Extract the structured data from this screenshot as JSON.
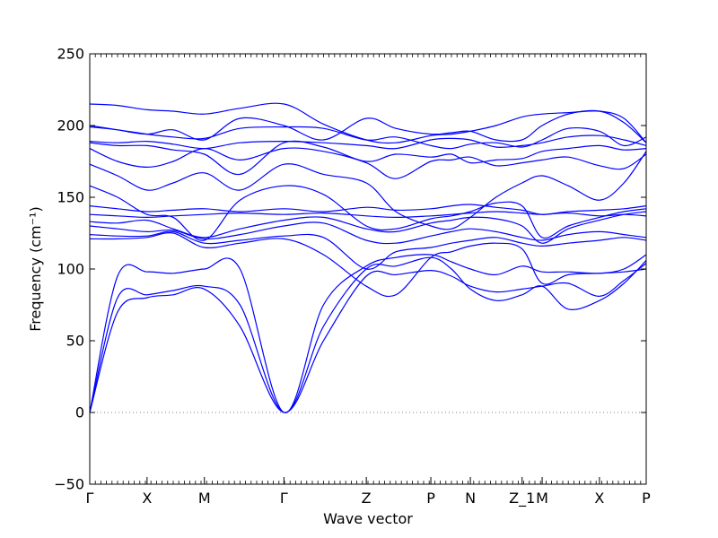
{
  "chart_data": {
    "type": "line",
    "title": "",
    "xlabel": "Wave vector",
    "ylabel": "Frequency (cm⁻¹)",
    "ylim": [
      -50,
      250
    ],
    "xlim": [
      0,
      10.0
    ],
    "yticks": [
      -50,
      0,
      50,
      100,
      150,
      200,
      250
    ],
    "yticklabels": [
      "−50",
      "0",
      "50",
      "100",
      "150",
      "200",
      "250"
    ],
    "grid": false,
    "legend": "none",
    "zero_line": {
      "y": 0,
      "style": "dotted"
    },
    "colors": {
      "band": "#0000ff",
      "axis": "#000000",
      "zero_line": "#555555"
    },
    "high_symmetry_points": [
      {
        "label": "Γ",
        "x": 0.0
      },
      {
        "label": "X",
        "x": 1.03
      },
      {
        "label": "M",
        "x": 2.06
      },
      {
        "label": "Γ",
        "x": 3.49
      },
      {
        "label": "Z",
        "x": 4.97
      },
      {
        "label": "P",
        "x": 6.13
      },
      {
        "label": "N",
        "x": 6.84
      },
      {
        "label": "Z_1",
        "x": 7.77
      },
      {
        "label": "M",
        "x": 8.13
      },
      {
        "label": "X",
        "x": 9.16
      },
      {
        "label": "P",
        "x": 10.0
      }
    ],
    "series": [
      {
        "x": [
          0,
          0.5,
          1.03,
          1.5,
          2.06,
          2.7,
          3.49,
          4.2,
          4.97,
          5.5,
          6.13,
          6.5,
          6.84,
          7.3,
          7.77,
          8.13,
          8.6,
          9.16,
          9.6,
          10.0
        ],
        "y": [
          0,
          70,
          80,
          82,
          86,
          60,
          0,
          50,
          95,
          96,
          99,
          95,
          88,
          84,
          86,
          88,
          90,
          81,
          92,
          104
        ]
      },
      {
        "x": [
          0,
          0.5,
          1.03,
          1.5,
          2.06,
          2.7,
          3.49,
          4.2,
          4.97,
          5.5,
          6.13,
          6.5,
          6.84,
          7.3,
          7.77,
          8.13,
          8.6,
          9.16,
          9.6,
          10.0
        ],
        "y": [
          0,
          80,
          82,
          85,
          88,
          75,
          0,
          60,
          100,
          102,
          108,
          100,
          86,
          78,
          82,
          88,
          72,
          78,
          90,
          106
        ]
      },
      {
        "x": [
          0,
          0.5,
          1.03,
          1.5,
          2.06,
          2.7,
          3.49,
          4.2,
          4.97,
          5.5,
          6.13,
          6.5,
          6.84,
          7.3,
          7.77,
          8.13,
          8.6,
          9.16,
          9.6,
          10.0
        ],
        "y": [
          0,
          95,
          98,
          97,
          100,
          100,
          0,
          75,
          102,
          108,
          110,
          105,
          100,
          96,
          102,
          98,
          98,
          97,
          100,
          110
        ]
      },
      {
        "x": [
          0,
          0.5,
          1.03,
          1.5,
          2.06,
          2.7,
          3.49,
          4.2,
          4.97,
          5.5,
          6.13,
          6.5,
          6.84,
          7.3,
          7.77,
          8.13,
          8.6,
          9.16,
          9.6,
          10.0
        ],
        "y": [
          121,
          121,
          122,
          125,
          115,
          118,
          121,
          110,
          88,
          82,
          108,
          112,
          116,
          118,
          114,
          90,
          96,
          97,
          98,
          100
        ]
      },
      {
        "x": [
          0,
          0.5,
          1.03,
          1.5,
          2.06,
          2.7,
          3.49,
          4.2,
          4.97,
          5.5,
          6.13,
          6.5,
          6.84,
          7.3,
          7.77,
          8.13,
          8.6,
          9.16,
          9.6,
          10.0
        ],
        "y": [
          124,
          123,
          123,
          126,
          118,
          120,
          123,
          122,
          100,
          112,
          115,
          118,
          120,
          122,
          118,
          116,
          118,
          120,
          122,
          120
        ]
      },
      {
        "x": [
          0,
          0.5,
          1.03,
          1.5,
          2.06,
          2.7,
          3.49,
          4.2,
          4.97,
          5.5,
          6.13,
          6.5,
          6.84,
          7.3,
          7.77,
          8.13,
          8.6,
          9.16,
          9.6,
          10.0
        ],
        "y": [
          130,
          128,
          126,
          127,
          121,
          124,
          130,
          132,
          120,
          118,
          123,
          126,
          128,
          126,
          122,
          120,
          124,
          126,
          124,
          122
        ]
      },
      {
        "x": [
          0,
          0.5,
          1.03,
          1.5,
          2.06,
          2.7,
          3.49,
          4.2,
          4.97,
          5.5,
          6.13,
          6.5,
          6.84,
          7.3,
          7.77,
          8.13,
          8.6,
          9.16,
          9.6,
          10.0
        ],
        "y": [
          133,
          132,
          134,
          128,
          122,
          128,
          134,
          136,
          128,
          126,
          132,
          134,
          136,
          135,
          130,
          118,
          128,
          134,
          138,
          140
        ]
      },
      {
        "x": [
          0,
          0.5,
          1.03,
          1.5,
          2.06,
          2.7,
          3.49,
          4.2,
          4.97,
          5.5,
          6.13,
          6.5,
          6.84,
          7.3,
          7.77,
          8.13,
          8.6,
          9.16,
          9.6,
          10.0
        ],
        "y": [
          138,
          137,
          136,
          137,
          138,
          139,
          138,
          139,
          137,
          136,
          137,
          138,
          139,
          140,
          139,
          138,
          139,
          137,
          138,
          137
        ]
      },
      {
        "x": [
          0,
          0.5,
          1.03,
          1.5,
          2.06,
          2.7,
          3.49,
          4.2,
          4.97,
          5.5,
          6.13,
          6.5,
          6.84,
          7.3,
          7.77,
          8.13,
          8.6,
          9.16,
          9.6,
          10.0
        ],
        "y": [
          144,
          142,
          140,
          141,
          142,
          140,
          142,
          140,
          143,
          141,
          142,
          144,
          145,
          143,
          141,
          138,
          140,
          141,
          142,
          144
        ]
      },
      {
        "x": [
          0,
          0.5,
          1.03,
          1.5,
          2.06,
          2.7,
          3.49,
          4.2,
          4.97,
          5.5,
          6.13,
          6.5,
          6.84,
          7.3,
          7.77,
          8.13,
          8.6,
          9.16,
          9.6,
          10.0
        ],
        "y": [
          158,
          150,
          138,
          136,
          120,
          148,
          158,
          152,
          130,
          128,
          135,
          137,
          140,
          146,
          144,
          122,
          130,
          136,
          140,
          142
        ]
      },
      {
        "x": [
          0,
          0.5,
          1.03,
          1.5,
          2.06,
          2.7,
          3.49,
          4.2,
          4.97,
          5.5,
          6.13,
          6.5,
          6.84,
          7.3,
          7.77,
          8.13,
          8.6,
          9.16,
          9.6,
          10.0
        ],
        "y": [
          173,
          165,
          155,
          160,
          167,
          155,
          173,
          166,
          160,
          140,
          130,
          128,
          136,
          150,
          160,
          165,
          158,
          148,
          160,
          182
        ]
      },
      {
        "x": [
          0,
          0.5,
          1.03,
          1.5,
          2.06,
          2.7,
          3.49,
          4.2,
          4.97,
          5.5,
          6.13,
          6.5,
          6.84,
          7.3,
          7.77,
          8.13,
          8.6,
          9.16,
          9.6,
          10.0
        ],
        "y": [
          184,
          175,
          171,
          175,
          184,
          176,
          184,
          182,
          174,
          163,
          175,
          176,
          178,
          172,
          174,
          176,
          178,
          172,
          170,
          180
        ]
      },
      {
        "x": [
          0,
          0.5,
          1.03,
          1.5,
          2.06,
          2.7,
          3.49,
          4.2,
          4.97,
          5.5,
          6.13,
          6.5,
          6.84,
          7.3,
          7.77,
          8.13,
          8.6,
          9.16,
          9.6,
          10.0
        ],
        "y": [
          188,
          186,
          186,
          183,
          180,
          166,
          188,
          185,
          175,
          180,
          178,
          180,
          174,
          176,
          177,
          182,
          184,
          186,
          183,
          184
        ]
      },
      {
        "x": [
          0,
          0.5,
          1.03,
          1.5,
          2.06,
          2.7,
          3.49,
          4.2,
          4.97,
          5.5,
          6.13,
          6.5,
          6.84,
          7.3,
          7.77,
          8.13,
          8.6,
          9.16,
          9.6,
          10.0
        ],
        "y": [
          189,
          188,
          189,
          187,
          184,
          188,
          189,
          188,
          186,
          184,
          190,
          191,
          190,
          185,
          186,
          188,
          192,
          193,
          190,
          186
        ]
      },
      {
        "x": [
          0,
          0.5,
          1.03,
          1.5,
          2.06,
          2.7,
          3.49,
          4.2,
          4.97,
          5.5,
          6.13,
          6.5,
          6.84,
          7.3,
          7.77,
          8.13,
          8.6,
          9.16,
          9.6,
          10.0
        ],
        "y": [
          199,
          197,
          194,
          192,
          191,
          198,
          199,
          198,
          190,
          192,
          186,
          184,
          187,
          188,
          185,
          190,
          198,
          196,
          186,
          192
        ]
      },
      {
        "x": [
          0,
          0.5,
          1.03,
          1.5,
          2.06,
          2.7,
          3.49,
          4.2,
          4.97,
          5.5,
          6.13,
          6.5,
          6.84,
          7.3,
          7.77,
          8.13,
          8.6,
          9.16,
          9.6,
          10.0
        ],
        "y": [
          200,
          197,
          194,
          197,
          190,
          205,
          200,
          190,
          205,
          198,
          194,
          195,
          196,
          190,
          190,
          200,
          208,
          210,
          202,
          188
        ]
      },
      {
        "x": [
          0,
          0.5,
          1.03,
          1.5,
          2.06,
          2.7,
          3.49,
          4.2,
          4.97,
          5.5,
          6.13,
          6.5,
          6.84,
          7.3,
          7.77,
          8.13,
          8.6,
          9.16,
          9.6,
          10.0
        ],
        "y": [
          215,
          214,
          211,
          210,
          208,
          212,
          215,
          201,
          190,
          188,
          193,
          194,
          196,
          200,
          206,
          208,
          209,
          210,
          205,
          188
        ]
      }
    ]
  }
}
